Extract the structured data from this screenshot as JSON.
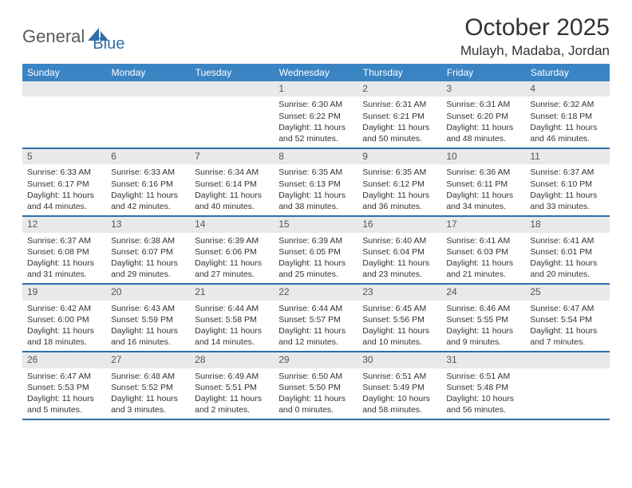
{
  "brand": {
    "word1": "General",
    "word2": "Blue"
  },
  "title": "October 2025",
  "location": "Mulayh, Madaba, Jordan",
  "colors": {
    "header_bg": "#3b84c4",
    "rule": "#2f6fa8",
    "daynum_bg": "#e8e9ea",
    "text": "#333333",
    "logo_grey": "#5a5a5a",
    "logo_blue": "#2f6fa8"
  },
  "day_names": [
    "Sunday",
    "Monday",
    "Tuesday",
    "Wednesday",
    "Thursday",
    "Friday",
    "Saturday"
  ],
  "weeks": [
    [
      {
        "n": "",
        "sr": "",
        "ss": "",
        "dl": ""
      },
      {
        "n": "",
        "sr": "",
        "ss": "",
        "dl": ""
      },
      {
        "n": "",
        "sr": "",
        "ss": "",
        "dl": ""
      },
      {
        "n": "1",
        "sr": "6:30 AM",
        "ss": "6:22 PM",
        "dl": "11 hours and 52 minutes."
      },
      {
        "n": "2",
        "sr": "6:31 AM",
        "ss": "6:21 PM",
        "dl": "11 hours and 50 minutes."
      },
      {
        "n": "3",
        "sr": "6:31 AM",
        "ss": "6:20 PM",
        "dl": "11 hours and 48 minutes."
      },
      {
        "n": "4",
        "sr": "6:32 AM",
        "ss": "6:18 PM",
        "dl": "11 hours and 46 minutes."
      }
    ],
    [
      {
        "n": "5",
        "sr": "6:33 AM",
        "ss": "6:17 PM",
        "dl": "11 hours and 44 minutes."
      },
      {
        "n": "6",
        "sr": "6:33 AM",
        "ss": "6:16 PM",
        "dl": "11 hours and 42 minutes."
      },
      {
        "n": "7",
        "sr": "6:34 AM",
        "ss": "6:14 PM",
        "dl": "11 hours and 40 minutes."
      },
      {
        "n": "8",
        "sr": "6:35 AM",
        "ss": "6:13 PM",
        "dl": "11 hours and 38 minutes."
      },
      {
        "n": "9",
        "sr": "6:35 AM",
        "ss": "6:12 PM",
        "dl": "11 hours and 36 minutes."
      },
      {
        "n": "10",
        "sr": "6:36 AM",
        "ss": "6:11 PM",
        "dl": "11 hours and 34 minutes."
      },
      {
        "n": "11",
        "sr": "6:37 AM",
        "ss": "6:10 PM",
        "dl": "11 hours and 33 minutes."
      }
    ],
    [
      {
        "n": "12",
        "sr": "6:37 AM",
        "ss": "6:08 PM",
        "dl": "11 hours and 31 minutes."
      },
      {
        "n": "13",
        "sr": "6:38 AM",
        "ss": "6:07 PM",
        "dl": "11 hours and 29 minutes."
      },
      {
        "n": "14",
        "sr": "6:39 AM",
        "ss": "6:06 PM",
        "dl": "11 hours and 27 minutes."
      },
      {
        "n": "15",
        "sr": "6:39 AM",
        "ss": "6:05 PM",
        "dl": "11 hours and 25 minutes."
      },
      {
        "n": "16",
        "sr": "6:40 AM",
        "ss": "6:04 PM",
        "dl": "11 hours and 23 minutes."
      },
      {
        "n": "17",
        "sr": "6:41 AM",
        "ss": "6:03 PM",
        "dl": "11 hours and 21 minutes."
      },
      {
        "n": "18",
        "sr": "6:41 AM",
        "ss": "6:01 PM",
        "dl": "11 hours and 20 minutes."
      }
    ],
    [
      {
        "n": "19",
        "sr": "6:42 AM",
        "ss": "6:00 PM",
        "dl": "11 hours and 18 minutes."
      },
      {
        "n": "20",
        "sr": "6:43 AM",
        "ss": "5:59 PM",
        "dl": "11 hours and 16 minutes."
      },
      {
        "n": "21",
        "sr": "6:44 AM",
        "ss": "5:58 PM",
        "dl": "11 hours and 14 minutes."
      },
      {
        "n": "22",
        "sr": "6:44 AM",
        "ss": "5:57 PM",
        "dl": "11 hours and 12 minutes."
      },
      {
        "n": "23",
        "sr": "6:45 AM",
        "ss": "5:56 PM",
        "dl": "11 hours and 10 minutes."
      },
      {
        "n": "24",
        "sr": "6:46 AM",
        "ss": "5:55 PM",
        "dl": "11 hours and 9 minutes."
      },
      {
        "n": "25",
        "sr": "6:47 AM",
        "ss": "5:54 PM",
        "dl": "11 hours and 7 minutes."
      }
    ],
    [
      {
        "n": "26",
        "sr": "6:47 AM",
        "ss": "5:53 PM",
        "dl": "11 hours and 5 minutes."
      },
      {
        "n": "27",
        "sr": "6:48 AM",
        "ss": "5:52 PM",
        "dl": "11 hours and 3 minutes."
      },
      {
        "n": "28",
        "sr": "6:49 AM",
        "ss": "5:51 PM",
        "dl": "11 hours and 2 minutes."
      },
      {
        "n": "29",
        "sr": "6:50 AM",
        "ss": "5:50 PM",
        "dl": "11 hours and 0 minutes."
      },
      {
        "n": "30",
        "sr": "6:51 AM",
        "ss": "5:49 PM",
        "dl": "10 hours and 58 minutes."
      },
      {
        "n": "31",
        "sr": "6:51 AM",
        "ss": "5:48 PM",
        "dl": "10 hours and 56 minutes."
      },
      {
        "n": "",
        "sr": "",
        "ss": "",
        "dl": ""
      }
    ]
  ],
  "labels": {
    "sunrise": "Sunrise:",
    "sunset": "Sunset:",
    "daylight": "Daylight:"
  }
}
